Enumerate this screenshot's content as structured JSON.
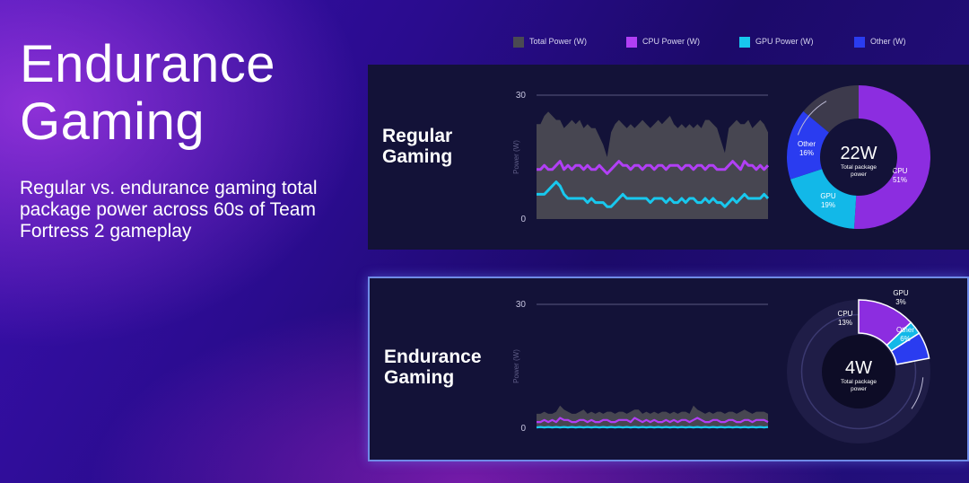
{
  "heading": {
    "line1": "Endurance",
    "line2": "Gaming"
  },
  "subtitle": "Regular vs. endurance gaming total package power across 60s of Team Fortress 2 gameplay",
  "legend": [
    {
      "label": "Total Power (W)",
      "color": "#4a4a52"
    },
    {
      "label": "CPU Power (W)",
      "color": "#b13ff5"
    },
    {
      "label": "GPU Power (W)",
      "color": "#18c8ee"
    },
    {
      "label": "Other  (W)",
      "color": "#2a3cf0"
    }
  ],
  "panels": [
    {
      "label_line1": "Regular",
      "label_line2": "Gaming"
    },
    {
      "label_line1": "Endurance",
      "label_line2": "Gaming"
    }
  ],
  "chart_data": [
    {
      "type": "area",
      "panel": "Regular Gaming",
      "ylabel": "Power (W)",
      "xlabel": "",
      "ylim": [
        0,
        30
      ],
      "yticks": [
        0,
        30
      ],
      "series": [
        {
          "name": "Total Power (W)",
          "color": "#4a4a52",
          "values": [
            23,
            23,
            25,
            26,
            25,
            24,
            24,
            22,
            23,
            24,
            23,
            24,
            22,
            23,
            22,
            22,
            20,
            18,
            15,
            21,
            23,
            24,
            23,
            22,
            23,
            22,
            23,
            24,
            23,
            22,
            23,
            24,
            23,
            24,
            25,
            23,
            22,
            23,
            22,
            23,
            22,
            23,
            22,
            24,
            24,
            23,
            22,
            19,
            16,
            22,
            23,
            24,
            23,
            23,
            24,
            22,
            23,
            24,
            23,
            21
          ]
        },
        {
          "name": "CPU Power (W)",
          "color": "#b13ff5",
          "values": [
            12,
            12,
            13,
            12,
            12,
            13,
            14,
            12,
            13,
            12,
            13,
            13,
            12,
            13,
            12,
            12,
            13,
            12,
            11,
            12,
            13,
            14,
            13,
            13,
            12,
            13,
            13,
            12,
            13,
            13,
            12,
            13,
            13,
            12,
            13,
            13,
            13,
            12,
            13,
            13,
            12,
            13,
            13,
            12,
            13,
            13,
            12,
            12,
            12,
            13,
            14,
            13,
            12,
            14,
            13,
            13,
            12,
            13,
            12,
            13
          ]
        },
        {
          "name": "GPU Power (W)",
          "color": "#18c8ee",
          "values": [
            6,
            6,
            6,
            7,
            8,
            9,
            8,
            6,
            5,
            5,
            5,
            5,
            5,
            4,
            5,
            4,
            4,
            4,
            3,
            3,
            4,
            5,
            6,
            5,
            5,
            5,
            5,
            5,
            5,
            4,
            5,
            5,
            5,
            4,
            5,
            4,
            4,
            5,
            4,
            5,
            5,
            4,
            4,
            5,
            4,
            5,
            4,
            4,
            3,
            4,
            5,
            4,
            5,
            6,
            5,
            5,
            5,
            5,
            6,
            5
          ]
        }
      ],
      "donut": {
        "total_value": "22W",
        "total_label_line1": "Total package",
        "total_label_line2": "power",
        "segments": [
          {
            "name": "CPU",
            "pct": "51%",
            "value": 51,
            "color": "#8c2de0"
          },
          {
            "name": "GPU",
            "pct": "19%",
            "value": 19,
            "color": "#12b8e8"
          },
          {
            "name": "Other",
            "pct": "16%",
            "value": 16,
            "color": "#2a3cf0"
          }
        ]
      }
    },
    {
      "type": "area",
      "panel": "Endurance Gaming",
      "ylabel": "Power (W)",
      "xlabel": "",
      "ylim": [
        0,
        30
      ],
      "yticks": [
        0,
        30
      ],
      "series": [
        {
          "name": "Total Power (W)",
          "color": "#4a4a52",
          "values": [
            3.5,
            3.5,
            4,
            3.5,
            3.5,
            4,
            5.5,
            4.5,
            4,
            3.5,
            3.5,
            4,
            4.5,
            3.5,
            4,
            3.5,
            4,
            3.5,
            4,
            4,
            3.5,
            4,
            4,
            3.5,
            4,
            4.5,
            4.5,
            3.5,
            4,
            3.5,
            4,
            3.5,
            4,
            4,
            3.5,
            4,
            3.5,
            4,
            4,
            3.5,
            5.5,
            4.5,
            4,
            3.5,
            4,
            3.5,
            4,
            4,
            3.5,
            4,
            4,
            3.5,
            4,
            4.5,
            4,
            3.5,
            4,
            4,
            4,
            3.5
          ]
        },
        {
          "name": "CPU Power (W)",
          "color": "#b13ff5",
          "values": [
            1.5,
            1.5,
            2,
            1.5,
            2,
            1.5,
            2.5,
            2,
            2,
            1.5,
            1.5,
            2,
            2,
            1.5,
            2,
            1.5,
            1.5,
            2,
            2,
            1.5,
            1.5,
            2,
            2,
            2,
            1.5,
            2.5,
            2,
            1.5,
            2,
            1.5,
            2,
            1.5,
            1.5,
            2,
            1.5,
            2,
            1.5,
            2,
            2,
            1.5,
            2,
            2.5,
            2,
            1.5,
            1.5,
            2,
            2,
            1.5,
            1.5,
            2,
            2,
            1.5,
            1.5,
            2,
            2,
            1.5,
            2,
            2,
            2,
            1.5
          ]
        },
        {
          "name": "GPU Power (W)",
          "color": "#18c8ee",
          "values": [
            0.2,
            0.3,
            0.2,
            0.3,
            0.2,
            0.3,
            0.2,
            0.3,
            0.2,
            0.3,
            0.2,
            0.3,
            0.2,
            0.3,
            0.2,
            0.3,
            0.2,
            0.3,
            0.2,
            0.3,
            0.2,
            0.3,
            0.2,
            0.3,
            0.2,
            0.3,
            0.2,
            0.3,
            0.2,
            0.3,
            0.2,
            0.3,
            0.2,
            0.3,
            0.2,
            0.3,
            0.2,
            0.3,
            0.2,
            0.3,
            0.2,
            0.3,
            0.2,
            0.3,
            0.2,
            0.3,
            0.2,
            0.3,
            0.2,
            0.3,
            0.2,
            0.3,
            0.2,
            0.3,
            0.2,
            0.3,
            0.2,
            0.3,
            0.2,
            0.3
          ]
        }
      ],
      "donut": {
        "total_value": "4W",
        "total_label_line1": "Total package",
        "total_label_line2": "power",
        "segments": [
          {
            "name": "CPU",
            "pct": "13%",
            "value": 13,
            "color": "#8c2de0"
          },
          {
            "name": "GPU",
            "pct": "3%",
            "value": 3,
            "color": "#12b8e8"
          },
          {
            "name": "Other",
            "pct": "6%",
            "value": 6,
            "color": "#2a3cf0"
          }
        ]
      }
    }
  ]
}
